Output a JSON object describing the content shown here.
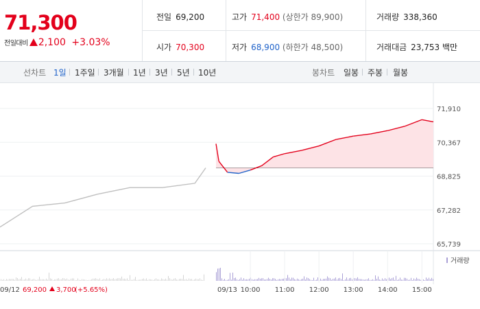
{
  "summary": {
    "price": "71,300",
    "change_label": "전일대비",
    "change_amount": "2,100",
    "change_rate": "+3.03%"
  },
  "info": {
    "prev_close_label": "전일",
    "prev_close": "69,200",
    "open_label": "시가",
    "open": "70,300",
    "high_label": "고가",
    "high": "71,400",
    "upper_limit": "(상한가 89,900)",
    "low_label": "저가",
    "low": "68,900",
    "lower_limit": "(하한가 48,500)",
    "volume_label": "거래량",
    "volume": "338,360",
    "amount_label": "거래대금",
    "amount": "23,753",
    "amount_unit": "백만"
  },
  "tabs": {
    "line_label": "선차트",
    "line_items": [
      "1일",
      "1주일",
      "3개월",
      "1년",
      "3년",
      "5년",
      "10년"
    ],
    "active": "1일",
    "candle_label": "봉차트",
    "candle_items": [
      "일봉",
      "주봉",
      "월봉"
    ]
  },
  "chart": {
    "prev_date": "09/12",
    "prev_info_price": "69,200",
    "prev_info_change": "3,700",
    "prev_info_rate": "(+5.65%)",
    "today_date": "09/13",
    "volume_label": "거래량",
    "colors": {
      "up": "#e3001b",
      "down": "#1f62c9",
      "prev": "#bfbfbf",
      "fill": "#fde3e6",
      "volume": "#a99fd6"
    }
  },
  "chart_data": {
    "type": "line",
    "yticks": [
      "71,910",
      "70,367",
      "68,825",
      "67,282",
      "65,739"
    ],
    "ylim": [
      65739,
      71910
    ],
    "xticks": [
      "10:00",
      "11:00",
      "12:00",
      "13:00",
      "14:00",
      "15:00"
    ],
    "base_price": 69200,
    "series": [
      {
        "x": [
          "09/12 09:00",
          "09/12 10:00",
          "09/12 11:00",
          "09/12 12:00",
          "09/12 13:00",
          "09/12 14:00",
          "09/12 15:00",
          "09/12 15:20"
        ],
        "y": [
          66500,
          67450,
          67600,
          68000,
          68300,
          68300,
          68500,
          69200
        ]
      },
      {
        "x": [
          "09:00",
          "09:05",
          "09:20",
          "09:40",
          "10:00",
          "10:20",
          "10:40",
          "11:00",
          "11:30",
          "12:00",
          "12:30",
          "13:00",
          "13:30",
          "14:00",
          "14:30",
          "15:00",
          "15:20"
        ],
        "y": [
          70300,
          69500,
          69000,
          68950,
          69100,
          69300,
          69700,
          69850,
          70000,
          70200,
          70500,
          70650,
          70750,
          70900,
          71100,
          71400,
          71300
        ]
      }
    ]
  }
}
